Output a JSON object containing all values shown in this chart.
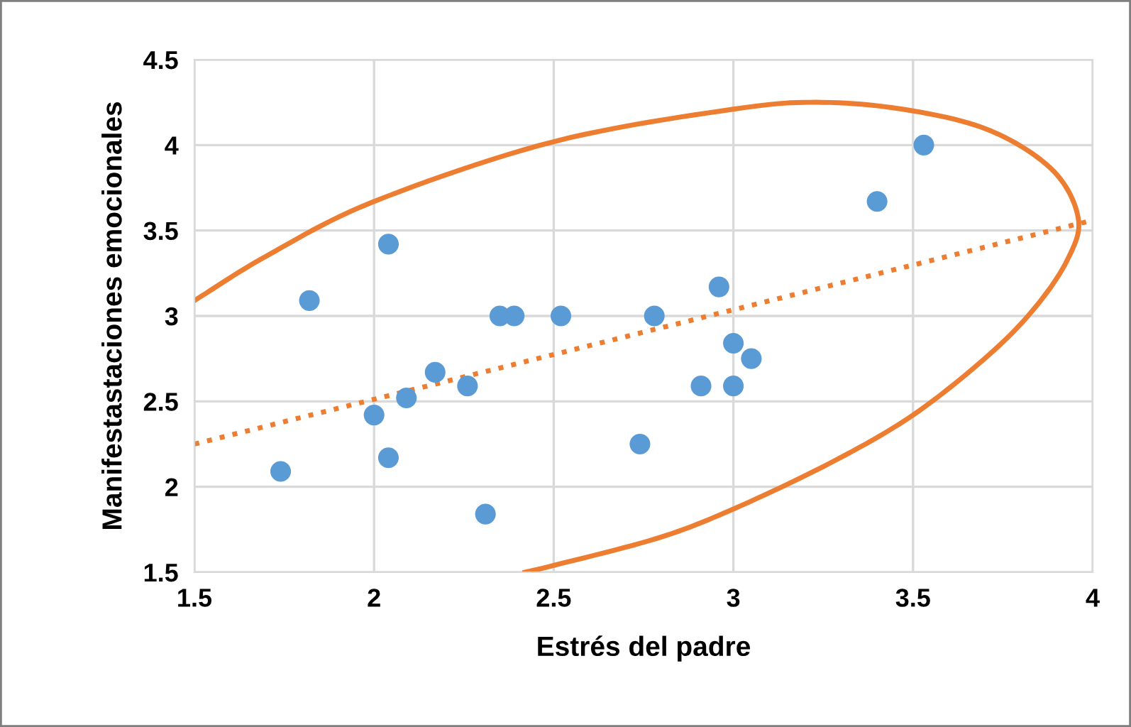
{
  "chart_data": {
    "type": "scatter",
    "xlabel": "Estrés del padre",
    "ylabel": "Manifestastaciones emocionales",
    "xlim": [
      1.5,
      4
    ],
    "ylim": [
      1.5,
      4.5
    ],
    "xticks": [
      1.5,
      2,
      2.5,
      3,
      3.5,
      4
    ],
    "yticks": [
      1.5,
      2,
      2.5,
      3,
      3.5,
      4,
      4.5
    ],
    "grid": true,
    "series": [
      {
        "type": "scatter",
        "marker": "circle",
        "color": "#5b9bd5",
        "x": [
          1.74,
          1.82,
          2.0,
          2.04,
          2.04,
          2.09,
          2.17,
          2.26,
          2.31,
          2.35,
          2.39,
          2.52,
          2.74,
          2.78,
          2.91,
          2.96,
          3.0,
          3.0,
          3.05,
          3.4,
          3.53
        ],
        "values": [
          2.09,
          3.09,
          2.42,
          3.42,
          2.17,
          2.52,
          2.67,
          2.59,
          1.84,
          3.0,
          3.0,
          3.0,
          2.25,
          3.0,
          2.59,
          3.17,
          2.84,
          2.59,
          2.75,
          3.67,
          4.0
        ]
      },
      {
        "type": "line",
        "color": "#ed7d31",
        "line_style": "dotted",
        "marker": "none",
        "x": [
          1.5,
          4
        ],
        "values": [
          2.25,
          3.56
        ]
      },
      {
        "type": "line",
        "color": "#ed7d31",
        "line_style": "solid",
        "marker": "none",
        "x": [
          1.5,
          1.7,
          2.0,
          2.5,
          3.0,
          3.25,
          3.5,
          3.72,
          3.89,
          3.96,
          3.93,
          3.84,
          3.71,
          3.5,
          3.27,
          3.0,
          2.79,
          2.5,
          2.42
        ],
        "values": [
          3.09,
          3.35,
          3.67,
          4.02,
          4.21,
          4.25,
          4.2,
          4.08,
          3.85,
          3.57,
          3.33,
          3.05,
          2.77,
          2.42,
          2.14,
          1.87,
          1.7,
          1.54,
          1.5
        ]
      }
    ]
  }
}
